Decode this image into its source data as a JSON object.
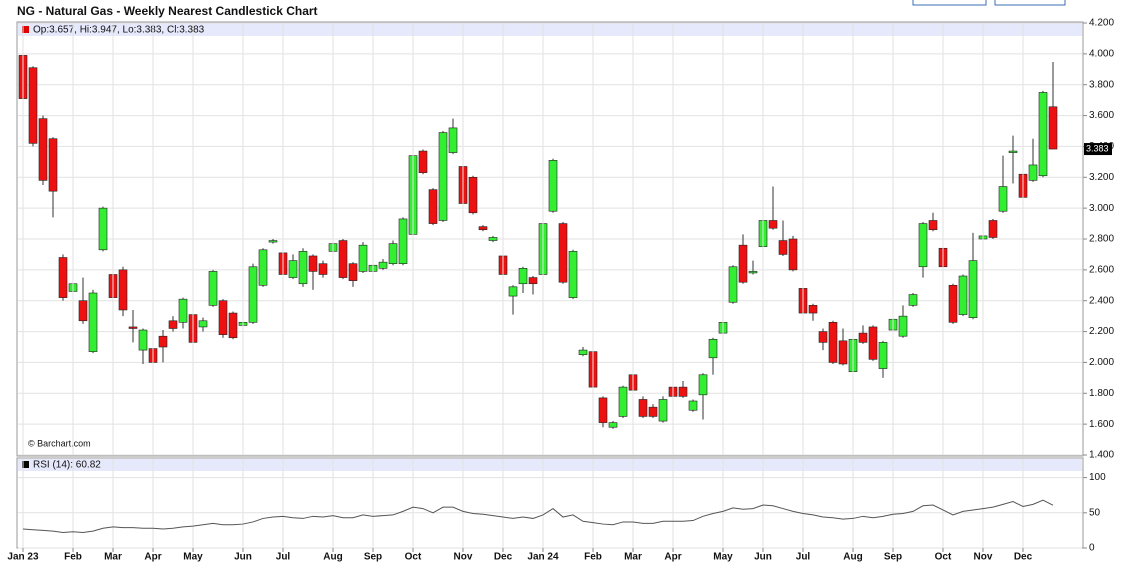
{
  "chart_data": [
    {
      "type": "candlestick",
      "title": "NG - Natural Gas - Weekly Nearest Candlestick Chart",
      "legend": "Op:3.657, Hi:3.947, Lo:3.383, Cl:3.383",
      "watermark": "© Barchart.com",
      "up_color": "#33ee33",
      "down_color": "#ee1111",
      "open": [
        3.99,
        3.91,
        3.58,
        3.45,
        2.68,
        2.46,
        2.4,
        2.07,
        2.73,
        2.57,
        2.6,
        2.23,
        2.08,
        2.09,
        2.17,
        2.27,
        2.26,
        2.31,
        2.23,
        2.37,
        2.4,
        2.32,
        2.24,
        2.26,
        2.5,
        2.78,
        2.71,
        2.55,
        2.51,
        2.69,
        2.64,
        2.72,
        2.79,
        2.64,
        2.59,
        2.59,
        2.61,
        2.64,
        2.64,
        2.83,
        3.37,
        3.12,
        2.92,
        3.36,
        3.27,
        3.2,
        2.88,
        2.79,
        2.69,
        2.43,
        2.51,
        2.55,
        2.57,
        2.98,
        2.9,
        2.42,
        2.05,
        2.07,
        1.77,
        1.58,
        1.65,
        1.92,
        1.76,
        1.71,
        1.62,
        1.84,
        1.84,
        1.69,
        1.79,
        2.03,
        2.19,
        2.39,
        2.76,
        2.58,
        2.75,
        2.92,
        2.79,
        2.8,
        2.48,
        2.37,
        2.2,
        2.26,
        2.14,
        1.94,
        2.19,
        2.23,
        1.96,
        2.21,
        2.17,
        2.37,
        2.62,
        2.92,
        2.74,
        2.5,
        2.31,
        2.29,
        2.8,
        2.92,
        2.98,
        3.36,
        3.22,
        3.18,
        3.21,
        3.657
      ],
      "high": [
        4.12,
        3.92,
        3.6,
        3.46,
        2.7,
        2.56,
        2.55,
        2.47,
        3.01,
        2.61,
        2.62,
        2.34,
        2.22,
        2.12,
        2.21,
        2.3,
        2.42,
        2.33,
        2.29,
        2.6,
        2.41,
        2.33,
        2.28,
        2.64,
        2.74,
        2.8,
        2.73,
        2.7,
        2.74,
        2.7,
        2.66,
        2.96,
        2.8,
        2.65,
        2.78,
        2.64,
        2.67,
        2.79,
        2.94,
        3.35,
        3.38,
        3.13,
        3.5,
        3.58,
        3.28,
        3.21,
        2.89,
        2.82,
        2.7,
        2.5,
        2.62,
        2.56,
        2.91,
        3.32,
        2.91,
        2.73,
        2.1,
        2.08,
        1.78,
        1.62,
        1.85,
        1.95,
        1.78,
        1.73,
        1.78,
        1.86,
        1.88,
        1.76,
        1.93,
        2.16,
        2.3,
        2.63,
        2.83,
        2.66,
        2.93,
        3.14,
        2.92,
        2.82,
        2.49,
        2.38,
        2.22,
        2.27,
        2.22,
        2.16,
        2.24,
        2.24,
        2.14,
        2.29,
        2.37,
        2.45,
        2.91,
        2.97,
        2.75,
        2.51,
        2.57,
        2.84,
        2.84,
        2.93,
        3.34,
        3.47,
        3.23,
        3.45,
        3.76,
        3.947
      ],
      "low": [
        3.7,
        3.4,
        3.15,
        2.94,
        2.4,
        2.44,
        2.25,
        2.06,
        2.72,
        2.4,
        2.3,
        2.13,
        1.99,
        1.99,
        2.0,
        2.2,
        2.22,
        2.07,
        2.2,
        2.36,
        2.16,
        2.15,
        2.22,
        2.25,
        2.49,
        2.77,
        2.55,
        2.54,
        2.49,
        2.47,
        2.55,
        2.71,
        2.54,
        2.49,
        2.58,
        2.51,
        2.6,
        2.63,
        2.63,
        2.82,
        3.22,
        2.89,
        2.91,
        3.35,
        3.02,
        2.96,
        2.85,
        2.78,
        2.56,
        2.31,
        2.45,
        2.44,
        2.56,
        2.97,
        2.51,
        2.41,
        2.04,
        1.83,
        1.58,
        1.57,
        1.64,
        1.8,
        1.64,
        1.64,
        1.61,
        1.76,
        1.77,
        1.68,
        1.63,
        1.92,
        2.18,
        2.38,
        2.51,
        2.57,
        2.74,
        2.86,
        2.69,
        2.59,
        2.31,
        2.27,
        2.08,
        1.99,
        1.98,
        1.93,
        2.12,
        2.01,
        1.9,
        2.14,
        2.16,
        2.36,
        2.55,
        2.85,
        2.61,
        2.25,
        2.3,
        2.28,
        2.79,
        2.8,
        2.97,
        3.16,
        3.05,
        3.17,
        3.2,
        3.383
      ],
      "close": [
        3.71,
        3.42,
        3.18,
        3.11,
        2.42,
        2.51,
        2.27,
        2.45,
        3.0,
        2.42,
        2.34,
        2.22,
        2.21,
        2.0,
        2.1,
        2.22,
        2.41,
        2.13,
        2.27,
        2.59,
        2.18,
        2.16,
        2.26,
        2.62,
        2.73,
        2.79,
        2.57,
        2.66,
        2.72,
        2.59,
        2.57,
        2.77,
        2.55,
        2.53,
        2.76,
        2.63,
        2.65,
        2.77,
        2.93,
        3.34,
        3.23,
        2.9,
        3.49,
        3.52,
        3.03,
        2.97,
        2.86,
        2.81,
        2.57,
        2.49,
        2.61,
        2.51,
        2.9,
        3.31,
        2.52,
        2.72,
        2.08,
        1.84,
        1.61,
        1.61,
        1.84,
        1.82,
        1.65,
        1.65,
        1.76,
        1.78,
        1.78,
        1.75,
        1.92,
        2.15,
        2.26,
        2.62,
        2.52,
        2.59,
        2.92,
        2.87,
        2.7,
        2.6,
        2.32,
        2.32,
        2.13,
        2.0,
        1.99,
        2.15,
        2.13,
        2.02,
        2.13,
        2.28,
        2.3,
        2.44,
        2.9,
        2.86,
        2.62,
        2.26,
        2.56,
        2.66,
        2.82,
        2.81,
        3.14,
        3.37,
        3.07,
        3.28,
        3.75,
        3.383
      ],
      "ylim": [
        1.4,
        4.2
      ],
      "yticks": [
        {
          "value": 1.4,
          "label": "1.400"
        },
        {
          "value": 1.6,
          "label": "1.600"
        },
        {
          "value": 1.8,
          "label": "1.800"
        },
        {
          "value": 2.0,
          "label": "2.000"
        },
        {
          "value": 2.2,
          "label": "2.200"
        },
        {
          "value": 2.4,
          "label": "2.400"
        },
        {
          "value": 2.6,
          "label": "2.600"
        },
        {
          "value": 2.8,
          "label": "2.800"
        },
        {
          "value": 3.0,
          "label": "3.000"
        },
        {
          "value": 3.2,
          "label": "3.200"
        },
        {
          "value": 3.4,
          "label": "3.400"
        },
        {
          "value": 3.6,
          "label": "3.600"
        },
        {
          "value": 3.8,
          "label": "3.800"
        },
        {
          "value": 4.0,
          "label": "4.000"
        },
        {
          "value": 4.2,
          "label": "4.200"
        }
      ],
      "grid": true
    },
    {
      "type": "line",
      "label": "RSI (14): 60.82",
      "color": "#555555",
      "categories": [
        "Jan 23",
        null,
        null,
        null,
        null,
        "Feb",
        null,
        null,
        null,
        "Mar",
        null,
        null,
        null,
        "Apr",
        null,
        null,
        null,
        "May",
        null,
        null,
        null,
        null,
        "Jun",
        null,
        null,
        null,
        "Jul",
        null,
        null,
        null,
        null,
        "Aug",
        null,
        null,
        null,
        "Sep",
        null,
        null,
        null,
        "Oct",
        null,
        null,
        null,
        null,
        "Nov",
        null,
        null,
        null,
        "Dec",
        null,
        null,
        null,
        "Jan 24",
        null,
        null,
        null,
        null,
        "Feb",
        null,
        null,
        null,
        "Mar",
        null,
        null,
        null,
        "Apr",
        null,
        null,
        null,
        null,
        "May",
        null,
        null,
        null,
        "Jun",
        null,
        null,
        null,
        "Jul",
        null,
        null,
        null,
        null,
        "Aug",
        null,
        null,
        null,
        "Sep",
        null,
        null,
        null,
        null,
        "Oct",
        null,
        null,
        null,
        "Nov",
        null,
        null,
        null,
        "Dec",
        null,
        null,
        null
      ],
      "values": [
        27,
        26,
        25,
        24,
        22,
        23,
        22,
        24,
        28,
        30,
        29,
        29,
        28,
        28,
        27,
        28,
        30,
        31,
        33,
        35,
        33,
        33,
        34,
        37,
        42,
        44,
        45,
        43,
        42,
        45,
        44,
        46,
        43,
        43,
        47,
        45,
        46,
        47,
        52,
        58,
        56,
        50,
        58,
        58,
        52,
        49,
        48,
        46,
        44,
        42,
        44,
        42,
        47,
        56,
        44,
        47,
        38,
        36,
        34,
        33,
        37,
        37,
        35,
        35,
        38,
        38,
        38,
        39,
        45,
        49,
        52,
        57,
        55,
        56,
        61,
        60,
        56,
        52,
        49,
        47,
        44,
        43,
        41,
        42,
        45,
        43,
        45,
        48,
        49,
        52,
        60,
        61,
        54,
        47,
        52,
        54,
        56,
        58,
        62,
        66,
        59,
        62,
        68,
        60.82
      ],
      "ylim": [
        0,
        125
      ],
      "yticks": [
        0,
        50,
        100
      ],
      "grid": true
    }
  ]
}
